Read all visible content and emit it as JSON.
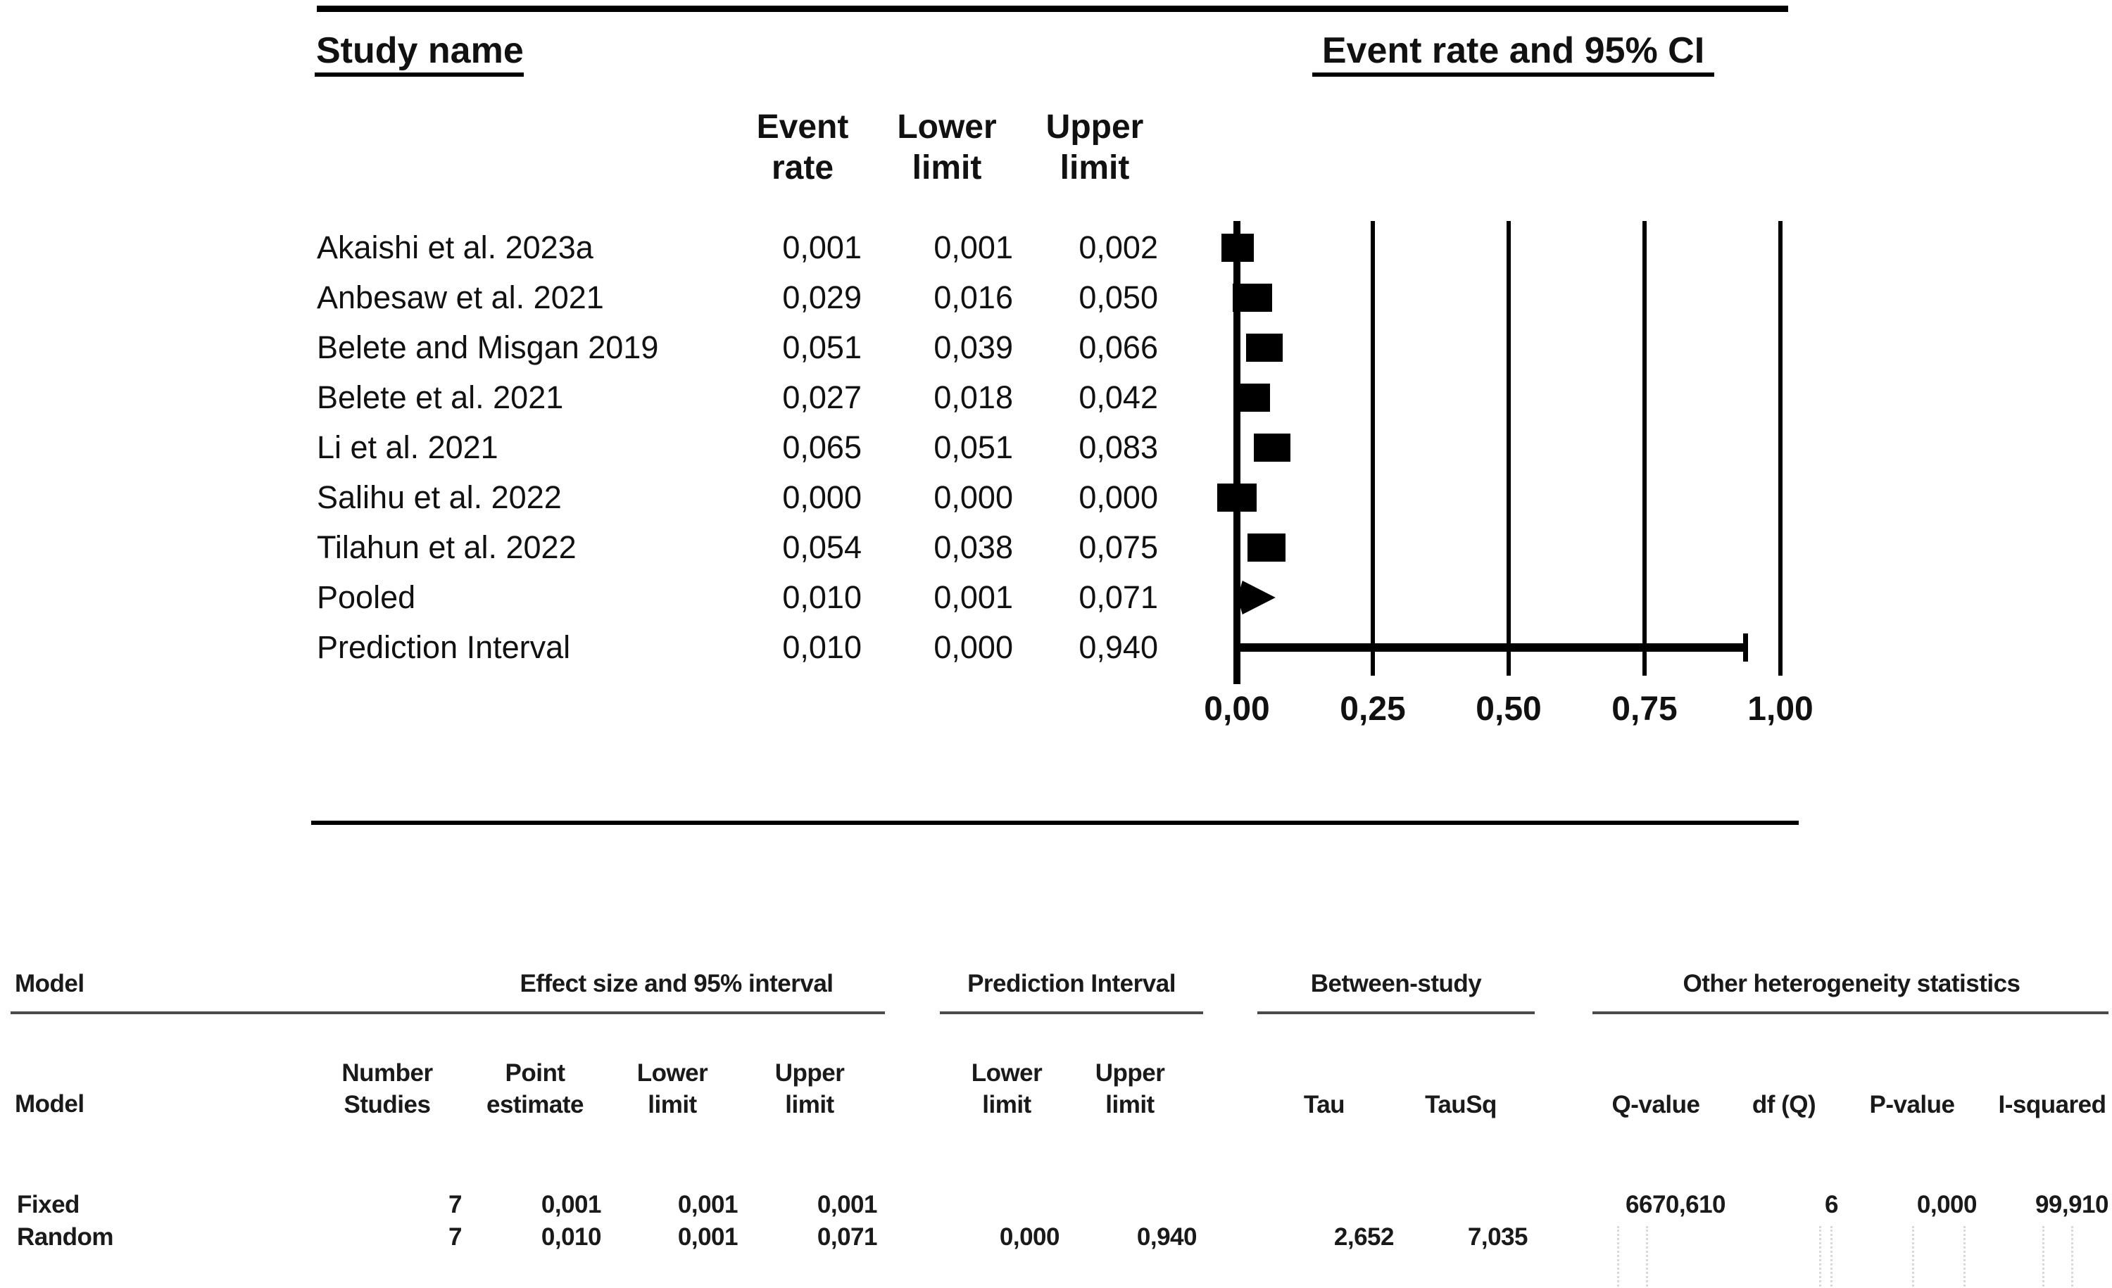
{
  "figure": {
    "left_title": "Study name",
    "right_title": "Event rate and 95% CI",
    "stat_columns": [
      {
        "text": "Event\nrate"
      },
      {
        "text": "Lower\nlimit"
      },
      {
        "text": "Upper\nlimit"
      }
    ],
    "studies": [
      {
        "name": "Akaishi et al. 2023a",
        "event_rate": "0,001",
        "lower_limit": "0,001",
        "upper_limit": "0,002",
        "rate_value": 0.001,
        "lower_value": 0.001,
        "upper_value": 0.002,
        "marker": "square",
        "marker_width": 46
      },
      {
        "name": "Anbesaw et al. 2021",
        "event_rate": "0,029",
        "lower_limit": "0,016",
        "upper_limit": "0,050",
        "rate_value": 0.029,
        "lower_value": 0.016,
        "upper_value": 0.05,
        "marker": "square",
        "marker_width": 56
      },
      {
        "name": "Belete and Misgan 2019",
        "event_rate": "0,051",
        "lower_limit": "0,039",
        "upper_limit": "0,066",
        "rate_value": 0.051,
        "lower_value": 0.039,
        "upper_value": 0.066,
        "marker": "square",
        "marker_width": 52
      },
      {
        "name": "Belete et al. 2021",
        "event_rate": "0,027",
        "lower_limit": "0,018",
        "upper_limit": "0,042",
        "rate_value": 0.027,
        "lower_value": 0.018,
        "upper_value": 0.042,
        "marker": "square",
        "marker_width": 52
      },
      {
        "name": "Li et al. 2021",
        "event_rate": "0,065",
        "lower_limit": "0,051",
        "upper_limit": "0,083",
        "rate_value": 0.065,
        "lower_value": 0.051,
        "upper_value": 0.083,
        "marker": "square",
        "marker_width": 52
      },
      {
        "name": "Salihu et al. 2022",
        "event_rate": "0,000",
        "lower_limit": "0,000",
        "upper_limit": "0,000",
        "rate_value": 0.0,
        "lower_value": 0.0,
        "upper_value": 0.0,
        "marker": "square",
        "marker_width": 56
      },
      {
        "name": "Tilahun et al. 2022",
        "event_rate": "0,054",
        "lower_limit": "0,038",
        "upper_limit": "0,075",
        "rate_value": 0.054,
        "lower_value": 0.038,
        "upper_value": 0.075,
        "marker": "square",
        "marker_width": 54
      },
      {
        "name": "Pooled",
        "event_rate": "0,010",
        "lower_limit": "0,001",
        "upper_limit": "0,071",
        "rate_value": 0.01,
        "lower_value": 0.001,
        "upper_value": 0.071,
        "marker": "diamond",
        "marker_width": 54
      },
      {
        "name": "Prediction Interval",
        "event_rate": "0,010",
        "lower_limit": "0,000",
        "upper_limit": "0,940",
        "rate_value": 0.01,
        "lower_value": 0.0,
        "upper_value": 0.94,
        "marker": "interval",
        "marker_width": 0
      }
    ],
    "axis_ticks": [
      {
        "label": "0,00",
        "value": 0.0
      },
      {
        "label": "0,25",
        "value": 0.25
      },
      {
        "label": "0,50",
        "value": 0.5
      },
      {
        "label": "0,75",
        "value": 0.75
      },
      {
        "label": "1,00",
        "value": 1.0
      }
    ]
  },
  "summary_table": {
    "group_headers": [
      {
        "label": "Model"
      },
      {
        "label": "Effect size and 95% interval"
      },
      {
        "label": "Prediction Interval"
      },
      {
        "label": "Between-study"
      },
      {
        "label": "Other heterogeneity statistics"
      }
    ],
    "model_column_header": "Model",
    "column_headers": [
      {
        "text": "Number\nStudies"
      },
      {
        "text": "Point\nestimate"
      },
      {
        "text": "Lower\nlimit"
      },
      {
        "text": "Upper\nlimit"
      },
      {
        "text": "Lower\nlimit"
      },
      {
        "text": "Upper\nlimit"
      },
      {
        "text": "Tau"
      },
      {
        "text": "TauSq"
      },
      {
        "text": "Q-value"
      },
      {
        "text": "df (Q)"
      },
      {
        "text": "P-value"
      },
      {
        "text": "I-squared"
      }
    ],
    "rows": [
      {
        "model": "Fixed",
        "values": [
          "7",
          "0,001",
          "0,001",
          "0,001",
          "",
          "",
          "",
          "",
          "6670,610",
          "6",
          "0,000",
          "99,910"
        ]
      },
      {
        "model": "Random",
        "values": [
          "7",
          "0,010",
          "0,001",
          "0,071",
          "0,000",
          "0,940",
          "2,652",
          "7,035",
          "",
          "",
          "",
          ""
        ]
      }
    ]
  },
  "chart_data": {
    "type": "scatter",
    "variant": "forest-plot",
    "title": "Event rate and 95% CI",
    "xlabel": "Event rate",
    "xlim": [
      0,
      1
    ],
    "x_ticks": [
      0,
      0.25,
      0.5,
      0.75,
      1.0
    ],
    "decimal_separator": ",",
    "grid": "vertical-lines-at-ticks",
    "series": [
      {
        "name": "Akaishi et al. 2023a",
        "event_rate": 0.001,
        "ci_lower": 0.001,
        "ci_upper": 0.002,
        "marker": "square"
      },
      {
        "name": "Anbesaw et al. 2021",
        "event_rate": 0.029,
        "ci_lower": 0.016,
        "ci_upper": 0.05,
        "marker": "square"
      },
      {
        "name": "Belete and Misgan 2019",
        "event_rate": 0.051,
        "ci_lower": 0.039,
        "ci_upper": 0.066,
        "marker": "square"
      },
      {
        "name": "Belete et al. 2021",
        "event_rate": 0.027,
        "ci_lower": 0.018,
        "ci_upper": 0.042,
        "marker": "square"
      },
      {
        "name": "Li et al. 2021",
        "event_rate": 0.065,
        "ci_lower": 0.051,
        "ci_upper": 0.083,
        "marker": "square"
      },
      {
        "name": "Salihu et al. 2022",
        "event_rate": 0.0,
        "ci_lower": 0.0,
        "ci_upper": 0.0,
        "marker": "square"
      },
      {
        "name": "Tilahun et al. 2022",
        "event_rate": 0.054,
        "ci_lower": 0.038,
        "ci_upper": 0.075,
        "marker": "square"
      },
      {
        "name": "Pooled",
        "event_rate": 0.01,
        "ci_lower": 0.001,
        "ci_upper": 0.071,
        "marker": "diamond"
      },
      {
        "name": "Prediction Interval",
        "event_rate": 0.01,
        "ci_lower": 0.0,
        "ci_upper": 0.94,
        "marker": "interval-line"
      }
    ],
    "model_summary": {
      "fixed": {
        "number_studies": 7,
        "point_estimate": 0.001,
        "lower_limit": 0.001,
        "upper_limit": 0.001,
        "q_value": 6670.61,
        "df_q": 6,
        "p_value": 0.0,
        "i_squared": 99.91
      },
      "random": {
        "number_studies": 7,
        "point_estimate": 0.01,
        "lower_limit": 0.001,
        "upper_limit": 0.071,
        "prediction_lower": 0.0,
        "prediction_upper": 0.94,
        "tau": 2.652,
        "tau_sq": 7.035
      }
    }
  }
}
